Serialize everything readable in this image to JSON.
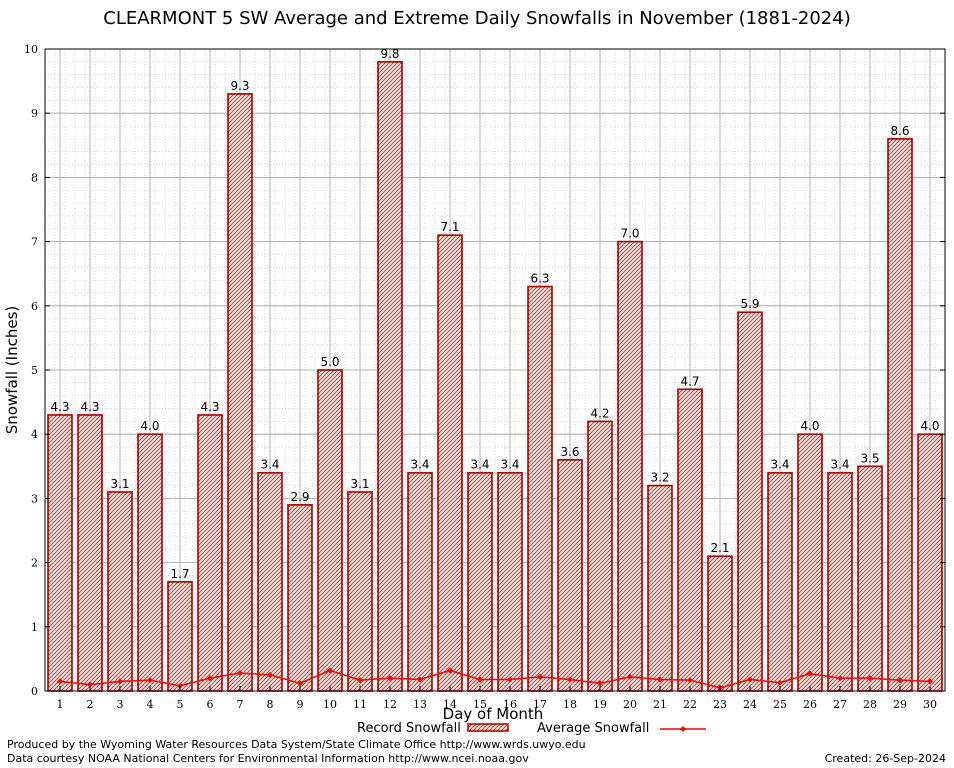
{
  "chart_data": {
    "type": "bar",
    "title": "CLEARMONT 5 SW Average and Extreme Daily Snowfalls in November (1881-2024)",
    "xlabel": "Day of Month",
    "ylabel": "Snowfall (Inches)",
    "ylim": [
      0,
      10
    ],
    "yticks": [
      "0",
      "1",
      "2",
      "3",
      "4",
      "5",
      "6",
      "7",
      "8",
      "9",
      "10"
    ],
    "categories": [
      "1",
      "2",
      "3",
      "4",
      "5",
      "6",
      "7",
      "8",
      "9",
      "10",
      "11",
      "12",
      "13",
      "14",
      "15",
      "16",
      "17",
      "18",
      "19",
      "20",
      "21",
      "22",
      "23",
      "24",
      "25",
      "26",
      "27",
      "28",
      "29",
      "30"
    ],
    "series": [
      {
        "name": "Record Snowfall",
        "values": [
          4.3,
          4.3,
          3.1,
          4.0,
          1.7,
          4.3,
          9.3,
          3.4,
          2.9,
          5.0,
          3.1,
          9.8,
          3.4,
          7.1,
          3.4,
          3.4,
          6.3,
          3.6,
          4.2,
          7.0,
          3.2,
          4.7,
          2.1,
          5.9,
          3.4,
          4.0,
          3.4,
          3.5,
          8.6,
          4.0
        ],
        "labels": [
          "4.3",
          "4.3",
          "3.1",
          "4.0",
          "1.7",
          "4.3",
          "9.3",
          "3.4",
          "2.9",
          "5.0",
          "3.1",
          "9.8",
          "3.4",
          "7.1",
          "3.4",
          "3.4",
          "6.3",
          "3.6",
          "4.2",
          "7.0",
          "3.2",
          "4.7",
          "2.1",
          "5.9",
          "3.4",
          "4.0",
          "3.4",
          "3.5",
          "8.6",
          "4.0"
        ]
      },
      {
        "name": "Average Snowfall",
        "values": [
          0.15,
          0.1,
          0.15,
          0.17,
          0.08,
          0.2,
          0.28,
          0.25,
          0.12,
          0.32,
          0.17,
          0.2,
          0.18,
          0.32,
          0.18,
          0.18,
          0.22,
          0.18,
          0.12,
          0.22,
          0.18,
          0.17,
          0.05,
          0.18,
          0.13,
          0.27,
          0.2,
          0.2,
          0.17,
          0.15
        ]
      }
    ],
    "grid": true,
    "legend_position": "bottom"
  },
  "footer": {
    "produced_by": "Produced by the Wyoming Water Resources Data System/State Climate Office http://www.wrds.uwyo.edu",
    "courtesy": "Data courtesy NOAA National Centers for Environmental Information http://www.ncei.noaa.gov",
    "created": "Created:  26-Sep-2024"
  },
  "colors": {
    "bar_fill": "#f2d9d9",
    "bar_edge": "#a30000",
    "average_line": "#ff0000",
    "grid": "#a0a0a0"
  }
}
